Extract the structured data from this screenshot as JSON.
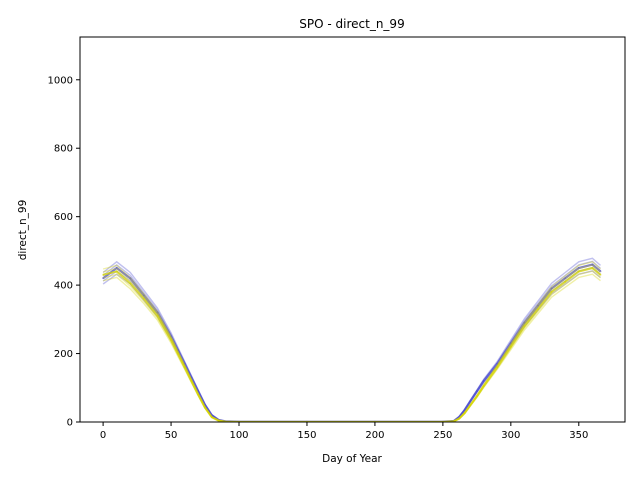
{
  "chart_data": {
    "type": "line",
    "title": "SPO - direct_n_99",
    "xlabel": "Day of Year",
    "ylabel": "direct_n_99",
    "xlim": [
      -17,
      384
    ],
    "ylim": [
      0,
      1125
    ],
    "xticks": [
      0,
      50,
      100,
      150,
      200,
      250,
      300,
      350
    ],
    "yticks": [
      0,
      200,
      400,
      600,
      800,
      1000
    ],
    "grid": false,
    "legend": "none",
    "series": [
      {
        "color": "#4a4ad0",
        "x": [
          0,
          10,
          20,
          30,
          40,
          50,
          55,
          60,
          65,
          70,
          75,
          80,
          85,
          90,
          100,
          150,
          200,
          250,
          258,
          262,
          266,
          270,
          275,
          280,
          290,
          300,
          310,
          320,
          330,
          340,
          350,
          360,
          366
        ],
        "y": [
          420,
          450,
          420,
          370,
          320,
          250,
          210,
          170,
          130,
          90,
          50,
          20,
          6,
          2,
          1,
          1,
          1,
          1,
          3,
          15,
          35,
          60,
          90,
          120,
          170,
          230,
          290,
          340,
          390,
          420,
          450,
          460,
          440
        ]
      },
      {
        "color": "#d4d400",
        "x": [
          0,
          10,
          20,
          30,
          40,
          50,
          55,
          60,
          65,
          70,
          75,
          80,
          85,
          90,
          100,
          150,
          200,
          250,
          258,
          262,
          266,
          270,
          275,
          280,
          290,
          300,
          310,
          320,
          330,
          340,
          350,
          360,
          366
        ],
        "y": [
          430,
          440,
          405,
          360,
          310,
          240,
          200,
          160,
          120,
          80,
          42,
          14,
          4,
          1,
          0,
          0,
          0,
          0,
          2,
          10,
          26,
          48,
          75,
          105,
          160,
          220,
          280,
          330,
          380,
          410,
          440,
          450,
          430
        ]
      }
    ]
  }
}
